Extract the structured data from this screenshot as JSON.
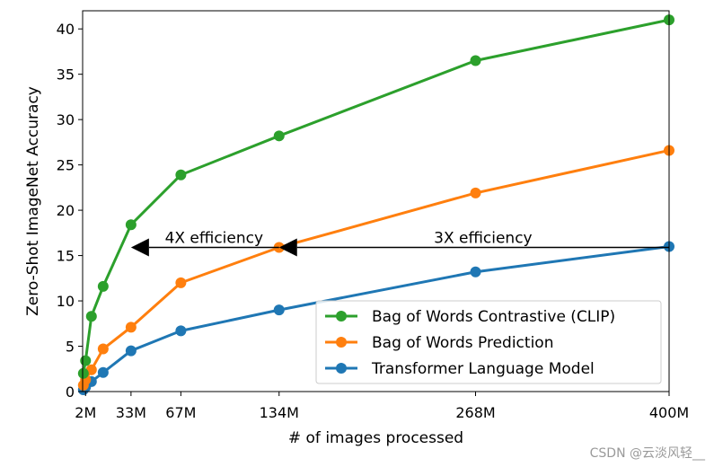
{
  "chart_data": {
    "type": "line",
    "xlabel": "# of images processed",
    "ylabel": "Zero-Shot ImageNet Accuracy",
    "xlim": [
      0,
      400
    ],
    "ylim": [
      0,
      42
    ],
    "x_ticks": [
      {
        "value": 2,
        "label": "2M"
      },
      {
        "value": 33,
        "label": "33M"
      },
      {
        "value": 67,
        "label": "67M"
      },
      {
        "value": 134,
        "label": "134M"
      },
      {
        "value": 268,
        "label": "268M"
      },
      {
        "value": 400,
        "label": "400M"
      }
    ],
    "y_ticks": [
      0,
      5,
      10,
      15,
      20,
      25,
      30,
      35,
      40
    ],
    "legend_position": "lower-right",
    "series": [
      {
        "name": "Bag of Words Contrastive (CLIP)",
        "color": "#2ca02c",
        "points": [
          [
            0.5,
            2.0
          ],
          [
            2,
            3.4
          ],
          [
            6,
            8.3
          ],
          [
            14,
            11.6
          ],
          [
            33,
            18.4
          ],
          [
            67,
            23.9
          ],
          [
            134,
            28.2
          ],
          [
            268,
            36.5
          ],
          [
            400,
            41.0
          ]
        ]
      },
      {
        "name": "Bag of Words Prediction",
        "color": "#ff7f0e",
        "points": [
          [
            0.5,
            0.7
          ],
          [
            2,
            1.3
          ],
          [
            6,
            2.4
          ],
          [
            14,
            4.7
          ],
          [
            33,
            7.1
          ],
          [
            67,
            12.0
          ],
          [
            134,
            15.9
          ],
          [
            268,
            21.9
          ],
          [
            400,
            26.6
          ]
        ]
      },
      {
        "name": "Transformer Language Model",
        "color": "#1f77b4",
        "points": [
          [
            0.5,
            0.2
          ],
          [
            2,
            0.5
          ],
          [
            6,
            1.1
          ],
          [
            14,
            2.1
          ],
          [
            33,
            4.5
          ],
          [
            67,
            6.7
          ],
          [
            134,
            9.0
          ],
          [
            268,
            13.2
          ],
          [
            400,
            16.0
          ]
        ]
      }
    ],
    "annotations": [
      {
        "text": "4X efficiency",
        "arrow_from": [
          134,
          15.9
        ],
        "arrow_to": [
          33,
          15.9
        ]
      },
      {
        "text": "3X efficiency",
        "arrow_from": [
          400,
          15.9
        ],
        "arrow_to": [
          134,
          15.9
        ]
      }
    ]
  },
  "watermark": "CSDN @云淡风轻__"
}
